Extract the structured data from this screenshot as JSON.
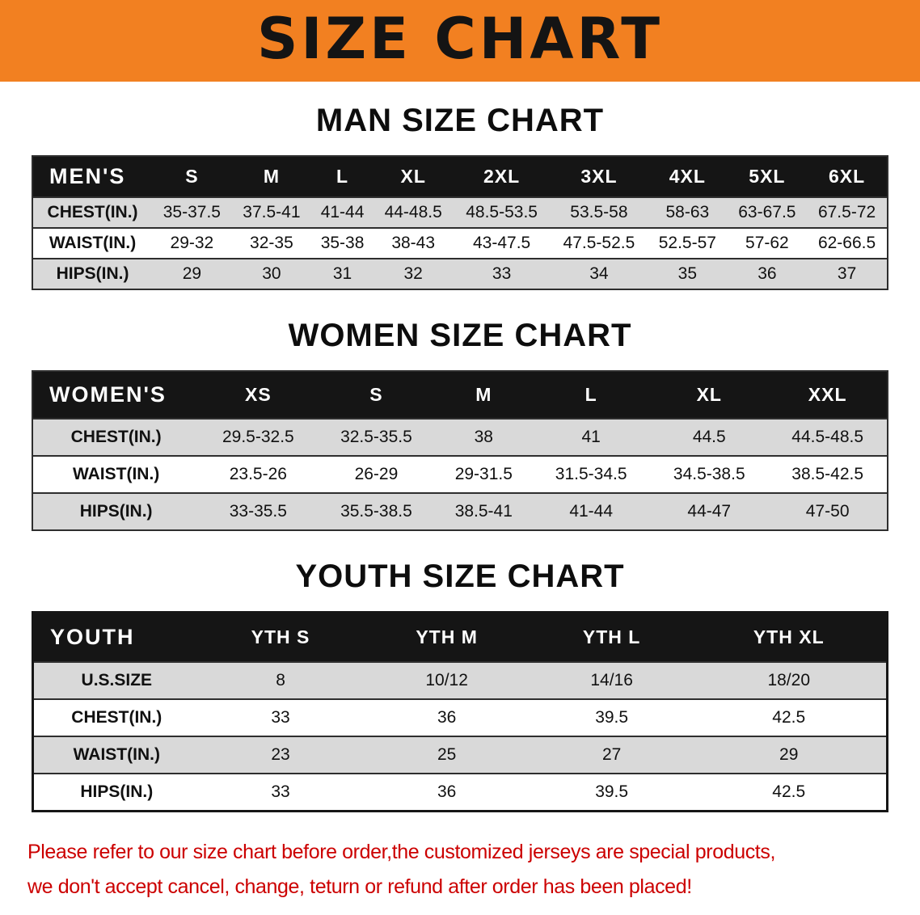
{
  "banner": {
    "title": "SIZE CHART"
  },
  "sections": {
    "men": {
      "heading": "MAN SIZE CHART"
    },
    "women": {
      "heading": "WOMEN SIZE CHART"
    },
    "youth": {
      "heading": "YOUTH SIZE CHART"
    }
  },
  "tables": {
    "men": {
      "header": [
        "MEN'S",
        "S",
        "M",
        "L",
        "XL",
        "2XL",
        "3XL",
        "4XL",
        "5XL",
        "6XL"
      ],
      "rows": [
        [
          "CHEST(IN.)",
          "35-37.5",
          "37.5-41",
          "41-44",
          "44-48.5",
          "48.5-53.5",
          "53.5-58",
          "58-63",
          "63-67.5",
          "67.5-72"
        ],
        [
          "WAIST(IN.)",
          "29-32",
          "32-35",
          "35-38",
          "38-43",
          "43-47.5",
          "47.5-52.5",
          "52.5-57",
          "57-62",
          "62-66.5"
        ],
        [
          "HIPS(IN.)",
          "29",
          "30",
          "31",
          "32",
          "33",
          "34",
          "35",
          "36",
          "37"
        ]
      ]
    },
    "women": {
      "header": [
        "WOMEN'S",
        "XS",
        "S",
        "M",
        "L",
        "XL",
        "XXL"
      ],
      "rows": [
        [
          "CHEST(IN.)",
          "29.5-32.5",
          "32.5-35.5",
          "38",
          "41",
          "44.5",
          "44.5-48.5"
        ],
        [
          "WAIST(IN.)",
          "23.5-26",
          "26-29",
          "29-31.5",
          "31.5-34.5",
          "34.5-38.5",
          "38.5-42.5"
        ],
        [
          "HIPS(IN.)",
          "33-35.5",
          "35.5-38.5",
          "38.5-41",
          "41-44",
          "44-47",
          "47-50"
        ]
      ]
    },
    "youth": {
      "header": [
        "YOUTH",
        "YTH S",
        "YTH M",
        "YTH L",
        "YTH XL"
      ],
      "rows": [
        [
          "U.S.SIZE",
          "8",
          "10/12",
          "14/16",
          "18/20"
        ],
        [
          "CHEST(IN.)",
          "33",
          "36",
          "39.5",
          "42.5"
        ],
        [
          "WAIST(IN.)",
          "23",
          "25",
          "27",
          "29"
        ],
        [
          "HIPS(IN.)",
          "33",
          "36",
          "39.5",
          "42.5"
        ]
      ]
    }
  },
  "footer": {
    "line1": "Please refer to our size chart before order,the customized jerseys are special products,",
    "line2": "we don't accept cancel, change, teturn or refund after order has been placed!"
  },
  "colors": {
    "banner_bg": "#F28021",
    "header_bg": "#151515",
    "stripe_bg": "#D9D9D9",
    "footer_text": "#CC0000"
  }
}
